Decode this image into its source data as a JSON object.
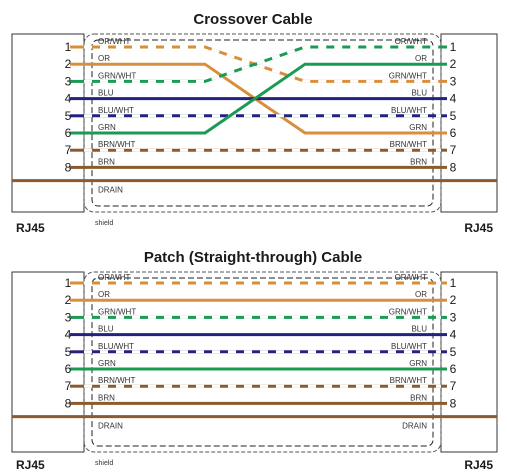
{
  "colors": {
    "orange": "#d98e3c",
    "green": "#1a9a52",
    "blue": "#23237f",
    "brown": "#8c5a2e",
    "shield": "#555555"
  },
  "diagrams": [
    {
      "title": "Crossover Cable",
      "left_connector": "RJ45",
      "right_connector": "RJ45",
      "shield_label": "shield",
      "pins": [
        "1",
        "2",
        "3",
        "4",
        "5",
        "6",
        "7",
        "8"
      ],
      "wires": [
        {
          "left_label": "OR/WHT",
          "right_label": "GRN/WHT",
          "left_pin": 1,
          "right_pin": 3,
          "color": "orange",
          "striped": true
        },
        {
          "left_label": "OR",
          "right_label": "GRN",
          "left_pin": 2,
          "right_pin": 6,
          "color": "orange",
          "striped": false
        },
        {
          "left_label": "GRN/WHT",
          "right_label": "OR/WHT",
          "left_pin": 3,
          "right_pin": 1,
          "color": "green",
          "striped": true
        },
        {
          "left_label": "BLU",
          "right_label": "BLU",
          "left_pin": 4,
          "right_pin": 4,
          "color": "blue",
          "striped": false
        },
        {
          "left_label": "BLU/WHT",
          "right_label": "BLU/WHT",
          "left_pin": 5,
          "right_pin": 5,
          "color": "blue",
          "striped": true
        },
        {
          "left_label": "GRN",
          "right_label": "OR",
          "left_pin": 6,
          "right_pin": 2,
          "color": "green",
          "striped": false
        },
        {
          "left_label": "BRN/WHT",
          "right_label": "BRN/WHT",
          "left_pin": 7,
          "right_pin": 7,
          "color": "brown",
          "striped": true
        },
        {
          "left_label": "BRN",
          "right_label": "BRN",
          "left_pin": 8,
          "right_pin": 8,
          "color": "brown",
          "striped": false
        },
        {
          "left_label": "DRAIN",
          "right_label": "",
          "left_pin": 0,
          "right_pin": 0,
          "color": "brown",
          "striped": false
        }
      ]
    },
    {
      "title": "Patch (Straight-through) Cable",
      "left_connector": "RJ45",
      "right_connector": "RJ45",
      "shield_label": "shield",
      "pins": [
        "1",
        "2",
        "3",
        "4",
        "5",
        "6",
        "7",
        "8"
      ],
      "wires": [
        {
          "left_label": "OR/WHT",
          "right_label": "OR/WHT",
          "left_pin": 1,
          "right_pin": 1,
          "color": "orange",
          "striped": true
        },
        {
          "left_label": "OR",
          "right_label": "OR",
          "left_pin": 2,
          "right_pin": 2,
          "color": "orange",
          "striped": false
        },
        {
          "left_label": "GRN/WHT",
          "right_label": "GRN/WHT",
          "left_pin": 3,
          "right_pin": 3,
          "color": "green",
          "striped": true
        },
        {
          "left_label": "BLU",
          "right_label": "BLU",
          "left_pin": 4,
          "right_pin": 4,
          "color": "blue",
          "striped": false
        },
        {
          "left_label": "BLU/WHT",
          "right_label": "BLU/WHT",
          "left_pin": 5,
          "right_pin": 5,
          "color": "blue",
          "striped": true
        },
        {
          "left_label": "GRN",
          "right_label": "GRN",
          "left_pin": 6,
          "right_pin": 6,
          "color": "green",
          "striped": false
        },
        {
          "left_label": "BRN/WHT",
          "right_label": "BRN/WHT",
          "left_pin": 7,
          "right_pin": 7,
          "color": "brown",
          "striped": true
        },
        {
          "left_label": "BRN",
          "right_label": "BRN",
          "left_pin": 8,
          "right_pin": 8,
          "color": "brown",
          "striped": false
        },
        {
          "left_label": "DRAIN",
          "right_label": "DRAIN",
          "left_pin": 0,
          "right_pin": 0,
          "color": "brown",
          "striped": false
        }
      ]
    }
  ]
}
